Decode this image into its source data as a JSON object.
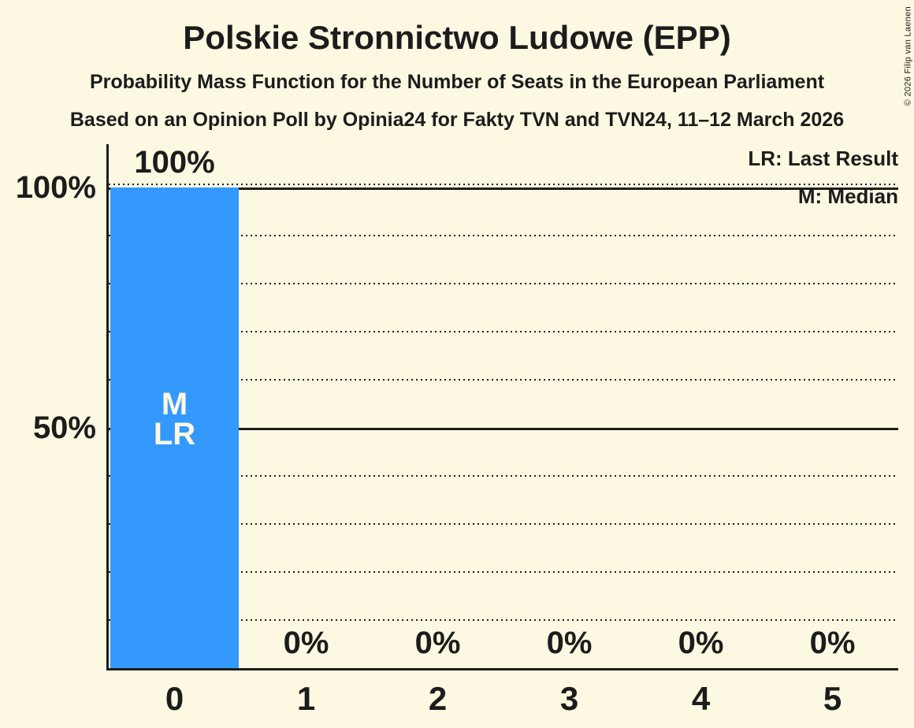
{
  "title": "Polskie Stronnictwo Ludowe (EPP)",
  "subtitle": "Probability Mass Function for the Number of Seats in the European Parliament",
  "source_line": "Based on an Opinion Poll by Opinia24 for Fakty TVN and TVN24, 11–12 March 2026",
  "copyright": "© 2026 Filip van Laenen",
  "legend": {
    "last_result": "LR: Last Result",
    "median": "M: Median"
  },
  "colors": {
    "background": "#fcf8e1",
    "bar": "#3499fd",
    "text": "#1c1c1c",
    "bar_label_text": "#fcf8e1"
  },
  "chart_data": {
    "type": "bar",
    "title": "Polskie Stronnictwo Ludowe (EPP)",
    "subtitle": "Probability Mass Function for the Number of Seats in the European Parliament",
    "categories": [
      "0",
      "1",
      "2",
      "3",
      "4",
      "5"
    ],
    "values": [
      100,
      0,
      0,
      0,
      0,
      0
    ],
    "value_labels": [
      "100%",
      "0%",
      "0%",
      "0%",
      "0%",
      "0%"
    ],
    "bar_annotations": {
      "0": [
        "M",
        "LR"
      ]
    },
    "annotation_key": {
      "LR": "Last Result",
      "M": "Median"
    },
    "ylim": [
      0,
      100
    ],
    "ytick_labels": [
      {
        "value": 100,
        "label": "100%"
      },
      {
        "value": 50,
        "label": "50%"
      }
    ],
    "gridlines": {
      "solid": [
        100,
        50
      ],
      "dotted": [
        90,
        80,
        70,
        60,
        40,
        30,
        20,
        10
      ]
    },
    "legend_position": "top-right",
    "median_seats": 0,
    "last_result_seats": 0
  }
}
